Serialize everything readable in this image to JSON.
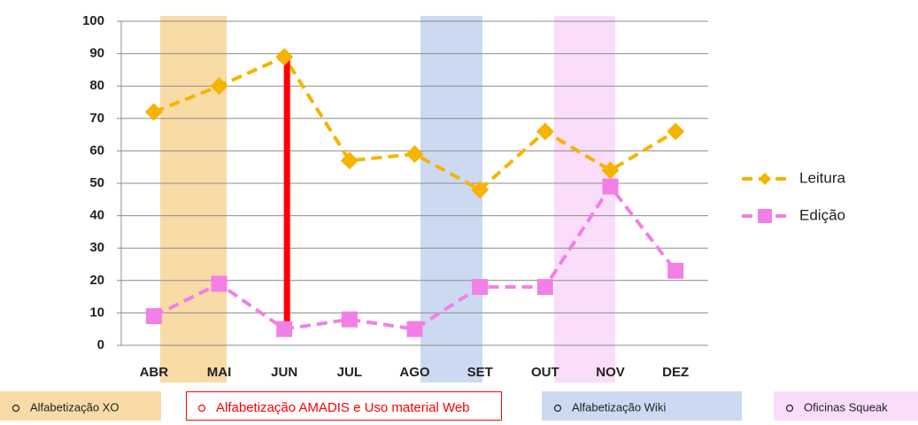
{
  "chart_data": {
    "type": "line",
    "categories": [
      "ABR",
      "MAI",
      "JUN",
      "JUL",
      "AGO",
      "SET",
      "OUT",
      "NOV",
      "DEZ"
    ],
    "series": [
      {
        "name": "Leitura",
        "color": "#f5b400",
        "marker": "diamond",
        "values": [
          72,
          80,
          89,
          57,
          59,
          48,
          66,
          54,
          66
        ]
      },
      {
        "name": "Edição",
        "color": "#f27fe6",
        "marker": "square",
        "values": [
          9,
          19,
          5,
          8,
          5,
          18,
          18,
          49,
          23
        ]
      }
    ],
    "ylim": [
      0,
      100
    ],
    "yticks": [
      0,
      10,
      20,
      30,
      40,
      50,
      60,
      70,
      80,
      90,
      100
    ],
    "grid": true,
    "legend": "right",
    "periods": [
      {
        "label": "Alfabetização XO",
        "color": "#f9dba6"
      },
      {
        "label": "Alfabetização AMADIS e Uso material Web",
        "color": "#ff0000"
      },
      {
        "label": "Alfabetização Wiki",
        "color": "#cbdaf1"
      },
      {
        "label": "Oficinas Squeak",
        "color": "#f9ddf9"
      }
    ]
  }
}
